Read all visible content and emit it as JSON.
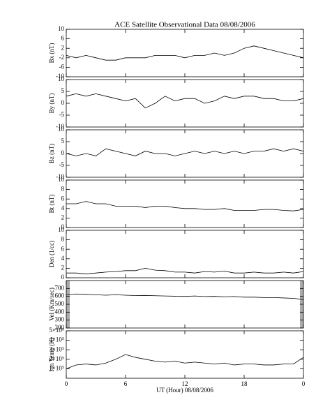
{
  "chart_data": [
    {
      "type": "line",
      "title": "ACE Satellite Observational Data   08/08/2006",
      "ylabel": "Bx (nT)",
      "color": "#000000",
      "x": [
        0,
        1,
        2,
        3,
        4,
        5,
        6,
        7,
        8,
        9,
        10,
        11,
        12,
        13,
        14,
        15,
        16,
        17,
        18,
        19,
        20,
        21,
        22,
        23,
        24
      ],
      "xlim": [
        0,
        24
      ],
      "values": [
        -1,
        -2,
        -1,
        -2,
        -3,
        -3,
        -2,
        -2,
        -2,
        -1,
        -1,
        -1,
        -2,
        -1,
        -1,
        0,
        -1,
        0,
        2,
        3,
        2,
        1,
        0,
        -1,
        -2
      ],
      "ylim": [
        -10,
        10
      ],
      "yticks": [
        -10,
        -6,
        -2,
        2,
        6,
        10
      ]
    },
    {
      "type": "line",
      "ylabel": "By (nT)",
      "color": "#000000",
      "x": [
        0,
        1,
        2,
        3,
        4,
        5,
        6,
        7,
        8,
        9,
        10,
        11,
        12,
        13,
        14,
        15,
        16,
        17,
        18,
        19,
        20,
        21,
        22,
        23,
        24
      ],
      "xlim": [
        0,
        24
      ],
      "values": [
        3,
        4,
        3,
        4,
        3,
        2,
        1,
        2,
        -2,
        0,
        3,
        1,
        2,
        2,
        0,
        1,
        3,
        2,
        3,
        3,
        2,
        2,
        1,
        1,
        2
      ],
      "ylim": [
        -10,
        10
      ],
      "yticks": [
        -10,
        -5,
        0,
        5,
        10
      ]
    },
    {
      "type": "line",
      "ylabel": "Bz (nT)",
      "color": "#000000",
      "x": [
        0,
        1,
        2,
        3,
        4,
        5,
        6,
        7,
        8,
        9,
        10,
        11,
        12,
        13,
        14,
        15,
        16,
        17,
        18,
        19,
        20,
        21,
        22,
        23,
        24
      ],
      "xlim": [
        0,
        24
      ],
      "values": [
        0,
        -1,
        0,
        -1,
        2,
        1,
        0,
        -1,
        1,
        0,
        0,
        -1,
        0,
        1,
        0,
        1,
        0,
        1,
        0,
        1,
        1,
        2,
        1,
        2,
        1
      ],
      "ylim": [
        -10,
        10
      ],
      "yticks": [
        -10,
        -5,
        0,
        5,
        10
      ]
    },
    {
      "type": "line",
      "ylabel": "Bt (nT)",
      "color": "#000000",
      "x": [
        0,
        1,
        2,
        3,
        4,
        5,
        6,
        7,
        8,
        9,
        10,
        11,
        12,
        13,
        14,
        15,
        16,
        17,
        18,
        19,
        20,
        21,
        22,
        23,
        24
      ],
      "xlim": [
        0,
        24
      ],
      "values": [
        5,
        5,
        5.5,
        5,
        5,
        4.5,
        4.5,
        4.5,
        4.2,
        4.5,
        4.5,
        4.2,
        4,
        4,
        3.8,
        3.8,
        4,
        3.6,
        3.6,
        3.6,
        3.8,
        3.8,
        3.6,
        3.5,
        3.8
      ],
      "ylim": [
        0,
        10
      ],
      "yticks": [
        0,
        2,
        4,
        6,
        8,
        10
      ]
    },
    {
      "type": "line",
      "ylabel": "Den (1/cc)",
      "color": "#000000",
      "x": [
        0,
        1,
        2,
        3,
        4,
        5,
        6,
        7,
        8,
        9,
        10,
        11,
        12,
        13,
        14,
        15,
        16,
        17,
        18,
        19,
        20,
        21,
        22,
        23,
        24
      ],
      "xlim": [
        0,
        24
      ],
      "values": [
        1,
        1,
        0.8,
        1,
        1.2,
        1.3,
        1.5,
        1.5,
        2,
        1.6,
        1.5,
        1.2,
        1.2,
        1,
        1.3,
        1.2,
        1.4,
        1,
        1,
        1.2,
        1,
        1,
        1.2,
        1,
        1.3
      ],
      "ylim": [
        0,
        10
      ],
      "yticks": [
        0,
        2,
        4,
        6,
        8,
        10
      ]
    },
    {
      "type": "line",
      "ylabel": "Vel (Km/sec)",
      "color": "#000000",
      "x": [
        0,
        1,
        2,
        3,
        4,
        5,
        6,
        7,
        8,
        9,
        10,
        11,
        12,
        13,
        14,
        15,
        16,
        17,
        18,
        19,
        20,
        21,
        22,
        23,
        24
      ],
      "xlim": [
        0,
        24
      ],
      "values": [
        620,
        630,
        625,
        620,
        615,
        620,
        615,
        610,
        612,
        608,
        605,
        602,
        600,
        605,
        598,
        600,
        595,
        598,
        590,
        590,
        585,
        585,
        580,
        575,
        560
      ],
      "ylim": [
        200,
        800
      ],
      "yticks": [
        200,
        300,
        400,
        500,
        600,
        700
      ]
    },
    {
      "type": "line",
      "ylabel": "Ion Temp (K)",
      "xlabel": "UT (Hour)   08/08/2006",
      "color": "#000000",
      "x": [
        0,
        1,
        2,
        3,
        4,
        5,
        6,
        7,
        8,
        9,
        10,
        11,
        12,
        13,
        14,
        15,
        16,
        17,
        18,
        19,
        20,
        21,
        22,
        23,
        24
      ],
      "xlim": [
        0,
        24
      ],
      "xticks": [
        0,
        6,
        12,
        18,
        {
          "value": 24,
          "label": "0"
        }
      ],
      "values": [
        100000,
        140000,
        150000,
        140000,
        160000,
        200000,
        250000,
        220000,
        200000,
        180000,
        170000,
        180000,
        160000,
        170000,
        160000,
        150000,
        160000,
        140000,
        150000,
        150000,
        140000,
        140000,
        150000,
        150000,
        220000
      ],
      "ylim": [
        0,
        500000
      ],
      "yticks": [
        {
          "value": 100000,
          "label": "1×10⁵"
        },
        {
          "value": 200000,
          "label": "2×10⁵"
        },
        {
          "value": 300000,
          "label": "3×10⁵"
        },
        {
          "value": 400000,
          "label": "4×10⁵"
        },
        {
          "value": 500000,
          "label": "5×10⁵"
        }
      ]
    }
  ]
}
